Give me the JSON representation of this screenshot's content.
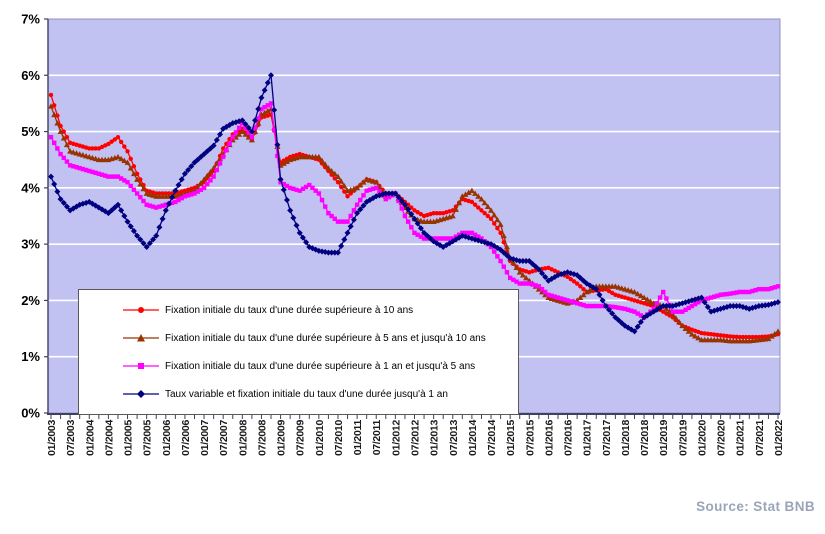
{
  "source": "Source: Stat BNB",
  "colors": {
    "plot_bg": "#c1c1f2",
    "gridline": "#ffffff",
    "plot_border": "#9494bc",
    "axis": "#3f3f63",
    "tick_label": "#1a1a1a",
    "source_text": "#9aa5b8",
    "legend_border": "#595959"
  },
  "chart_data": {
    "type": "line",
    "title": "",
    "xlabel": "",
    "ylabel": "",
    "ylim": [
      0,
      7
    ],
    "y_ticks": [
      "0%",
      "1%",
      "2%",
      "3%",
      "4%",
      "5%",
      "6%",
      "7%"
    ],
    "grid": "horizontal-white-on-lavender",
    "legend_position": "inside-bottom-left",
    "x_resolution": "quarterly estimates read from monthly plotted series",
    "x_ticks": [
      "01/2003",
      "07/2003",
      "01/2004",
      "07/2004",
      "01/2005",
      "07/2005",
      "01/2006",
      "07/2006",
      "01/2007",
      "07/2007",
      "01/2008",
      "07/2008",
      "01/2009",
      "07/2009",
      "01/2010",
      "07/2010",
      "01/2011",
      "07/2011",
      "01/2012",
      "07/2012",
      "01/2013",
      "07/2013",
      "01/2014",
      "07/2014",
      "01/2015",
      "07/2015",
      "01/2016",
      "07/2016",
      "01/2017",
      "07/2017",
      "01/2018",
      "07/2018",
      "01/2019",
      "07/2019",
      "01/2020",
      "07/2020",
      "01/2021",
      "07/2021",
      "01/2022"
    ],
    "x": [
      "01/2003",
      "04/2003",
      "07/2003",
      "10/2003",
      "01/2004",
      "04/2004",
      "07/2004",
      "10/2004",
      "01/2005",
      "04/2005",
      "07/2005",
      "10/2005",
      "01/2006",
      "04/2006",
      "07/2006",
      "10/2006",
      "01/2007",
      "04/2007",
      "07/2007",
      "10/2007",
      "01/2008",
      "04/2008",
      "07/2008",
      "10/2008",
      "01/2009",
      "04/2009",
      "07/2009",
      "10/2009",
      "01/2010",
      "04/2010",
      "07/2010",
      "10/2010",
      "01/2011",
      "04/2011",
      "07/2011",
      "10/2011",
      "01/2012",
      "04/2012",
      "07/2012",
      "10/2012",
      "01/2013",
      "04/2013",
      "07/2013",
      "10/2013",
      "01/2014",
      "04/2014",
      "07/2014",
      "10/2014",
      "01/2015",
      "04/2015",
      "07/2015",
      "10/2015",
      "01/2016",
      "04/2016",
      "07/2016",
      "10/2016",
      "01/2017",
      "04/2017",
      "07/2017",
      "10/2017",
      "01/2018",
      "04/2018",
      "07/2018",
      "10/2018",
      "01/2019",
      "04/2019",
      "07/2019",
      "10/2019",
      "01/2020",
      "04/2020",
      "07/2020",
      "10/2020",
      "01/2021",
      "04/2021",
      "07/2021",
      "10/2021",
      "01/2022"
    ],
    "series": [
      {
        "name": "Fixation initiale du taux d'une durée supérieure à 10 ans",
        "color": "#ff0000",
        "marker": "circle",
        "values": [
          5.65,
          5.1,
          4.8,
          4.75,
          4.7,
          4.7,
          4.78,
          4.9,
          4.65,
          4.25,
          3.95,
          3.9,
          3.9,
          3.9,
          3.95,
          4.0,
          4.1,
          4.3,
          4.7,
          4.95,
          5.05,
          4.85,
          5.25,
          5.3,
          4.45,
          4.55,
          4.6,
          4.55,
          4.5,
          4.3,
          4.1,
          3.85,
          4.0,
          4.15,
          4.1,
          3.9,
          3.9,
          3.75,
          3.6,
          3.5,
          3.55,
          3.55,
          3.6,
          3.8,
          3.75,
          3.6,
          3.45,
          3.2,
          2.7,
          2.55,
          2.5,
          2.55,
          2.58,
          2.5,
          2.42,
          2.3,
          2.15,
          2.18,
          2.2,
          2.1,
          2.05,
          2.0,
          1.95,
          1.9,
          1.8,
          1.7,
          1.55,
          1.48,
          1.42,
          1.4,
          1.38,
          1.36,
          1.35,
          1.35,
          1.35,
          1.36,
          1.4
        ]
      },
      {
        "name": "Fixation initiale du taux d'une durée supérieure à 5 ans et  jusqu'à 10 ans",
        "color": "#993300",
        "marker": "triangle",
        "values": [
          5.45,
          5.0,
          4.65,
          4.6,
          4.55,
          4.5,
          4.5,
          4.55,
          4.45,
          4.15,
          3.9,
          3.85,
          3.85,
          3.85,
          3.9,
          3.95,
          4.15,
          4.35,
          4.6,
          4.85,
          5.0,
          4.85,
          5.3,
          5.4,
          4.4,
          4.5,
          4.55,
          4.55,
          4.55,
          4.35,
          4.2,
          3.95,
          4.0,
          4.15,
          4.1,
          3.85,
          3.9,
          3.65,
          3.45,
          3.4,
          3.4,
          3.45,
          3.5,
          3.85,
          3.95,
          3.8,
          3.6,
          3.35,
          2.75,
          2.5,
          2.35,
          2.2,
          2.05,
          2.0,
          1.95,
          2.0,
          2.15,
          2.25,
          2.25,
          2.25,
          2.2,
          2.15,
          2.05,
          1.95,
          1.9,
          1.75,
          1.55,
          1.4,
          1.3,
          1.3,
          1.3,
          1.28,
          1.28,
          1.28,
          1.3,
          1.32,
          1.45
        ]
      },
      {
        "name": "Fixation initiale du taux d'une durée supérieure à 1 an et  jusqu'à 5 ans",
        "color": "#ff00ff",
        "marker": "square",
        "values": [
          4.9,
          4.6,
          4.4,
          4.35,
          4.3,
          4.25,
          4.2,
          4.2,
          4.1,
          3.9,
          3.7,
          3.65,
          3.7,
          3.75,
          3.85,
          3.9,
          4.0,
          4.2,
          4.55,
          4.9,
          5.15,
          4.9,
          5.4,
          5.5,
          4.1,
          4.0,
          3.95,
          4.05,
          3.9,
          3.55,
          3.4,
          3.4,
          3.7,
          3.95,
          4.0,
          3.8,
          3.9,
          3.5,
          3.2,
          3.1,
          3.1,
          3.1,
          3.1,
          3.2,
          3.2,
          3.1,
          2.95,
          2.7,
          2.4,
          2.3,
          2.3,
          2.25,
          2.1,
          2.05,
          2.0,
          1.95,
          1.9,
          1.9,
          1.9,
          1.88,
          1.85,
          1.8,
          1.7,
          1.85,
          2.15,
          1.8,
          1.8,
          1.9,
          2.0,
          2.05,
          2.1,
          2.12,
          2.15,
          2.15,
          2.2,
          2.2,
          2.25
        ]
      },
      {
        "name": "Taux variable et fixation initiale du taux d'une durée jusqu'à 1 an",
        "color": "#000080",
        "marker": "diamond",
        "values": [
          4.2,
          3.8,
          3.6,
          3.7,
          3.75,
          3.65,
          3.55,
          3.7,
          3.4,
          3.15,
          2.95,
          3.15,
          3.6,
          3.95,
          4.25,
          4.45,
          4.6,
          4.75,
          5.05,
          5.15,
          5.2,
          5.0,
          5.6,
          6.0,
          4.15,
          3.6,
          3.2,
          2.95,
          2.88,
          2.85,
          2.85,
          3.2,
          3.55,
          3.75,
          3.85,
          3.9,
          3.9,
          3.7,
          3.45,
          3.2,
          3.05,
          2.95,
          3.05,
          3.15,
          3.1,
          3.05,
          3.0,
          2.9,
          2.75,
          2.7,
          2.7,
          2.55,
          2.35,
          2.45,
          2.5,
          2.45,
          2.3,
          2.2,
          1.9,
          1.7,
          1.55,
          1.45,
          1.7,
          1.8,
          1.9,
          1.9,
          1.95,
          2.0,
          2.05,
          1.8,
          1.85,
          1.9,
          1.9,
          1.85,
          1.9,
          1.92,
          1.97
        ]
      }
    ]
  }
}
